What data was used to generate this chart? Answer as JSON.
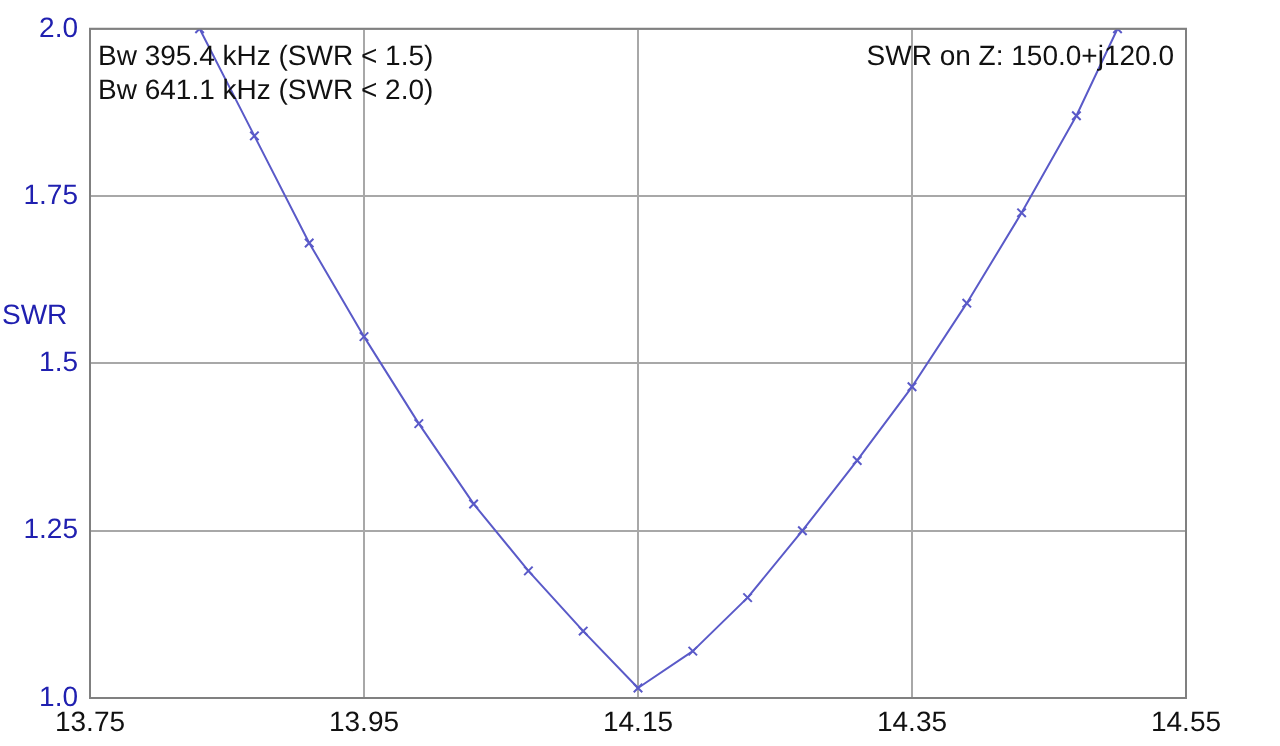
{
  "chart_data": {
    "type": "line",
    "ylabel": "SWR",
    "annotations": [
      "Bw 395.4 kHz (SWR < 1.5)\nBw 641.1 kHz (SWR < 2.0)",
      "SWR on Z: 150.0+j120.0"
    ],
    "x": [
      13.83,
      13.87,
      13.91,
      13.95,
      13.99,
      14.03,
      14.07,
      14.11,
      14.15,
      14.19,
      14.23,
      14.27,
      14.31,
      14.35,
      14.39,
      14.43,
      14.47,
      14.5
    ],
    "series": [
      {
        "color": "#5a5ac8",
        "values": [
          2.0,
          1.84,
          1.68,
          1.54,
          1.41,
          1.29,
          1.19,
          1.1,
          1.015,
          1.07,
          1.15,
          1.25,
          1.355,
          1.465,
          1.59,
          1.725,
          1.87,
          2.0
        ]
      }
    ],
    "xlim": [
      13.75,
      14.55
    ],
    "xticks": [
      13.75,
      13.95,
      14.15,
      14.35,
      14.55
    ],
    "ylim": [
      1.0,
      2.0
    ],
    "yticks": [
      {
        "value": 1.0,
        "label": "1.0"
      },
      1.25,
      {
        "value": 1.5,
        "label": "1.5"
      },
      1.75,
      {
        "value": 2.0,
        "label": "2.0"
      }
    ],
    "grid": true,
    "legend": false,
    "marker": "cross",
    "line_style": "solid"
  }
}
